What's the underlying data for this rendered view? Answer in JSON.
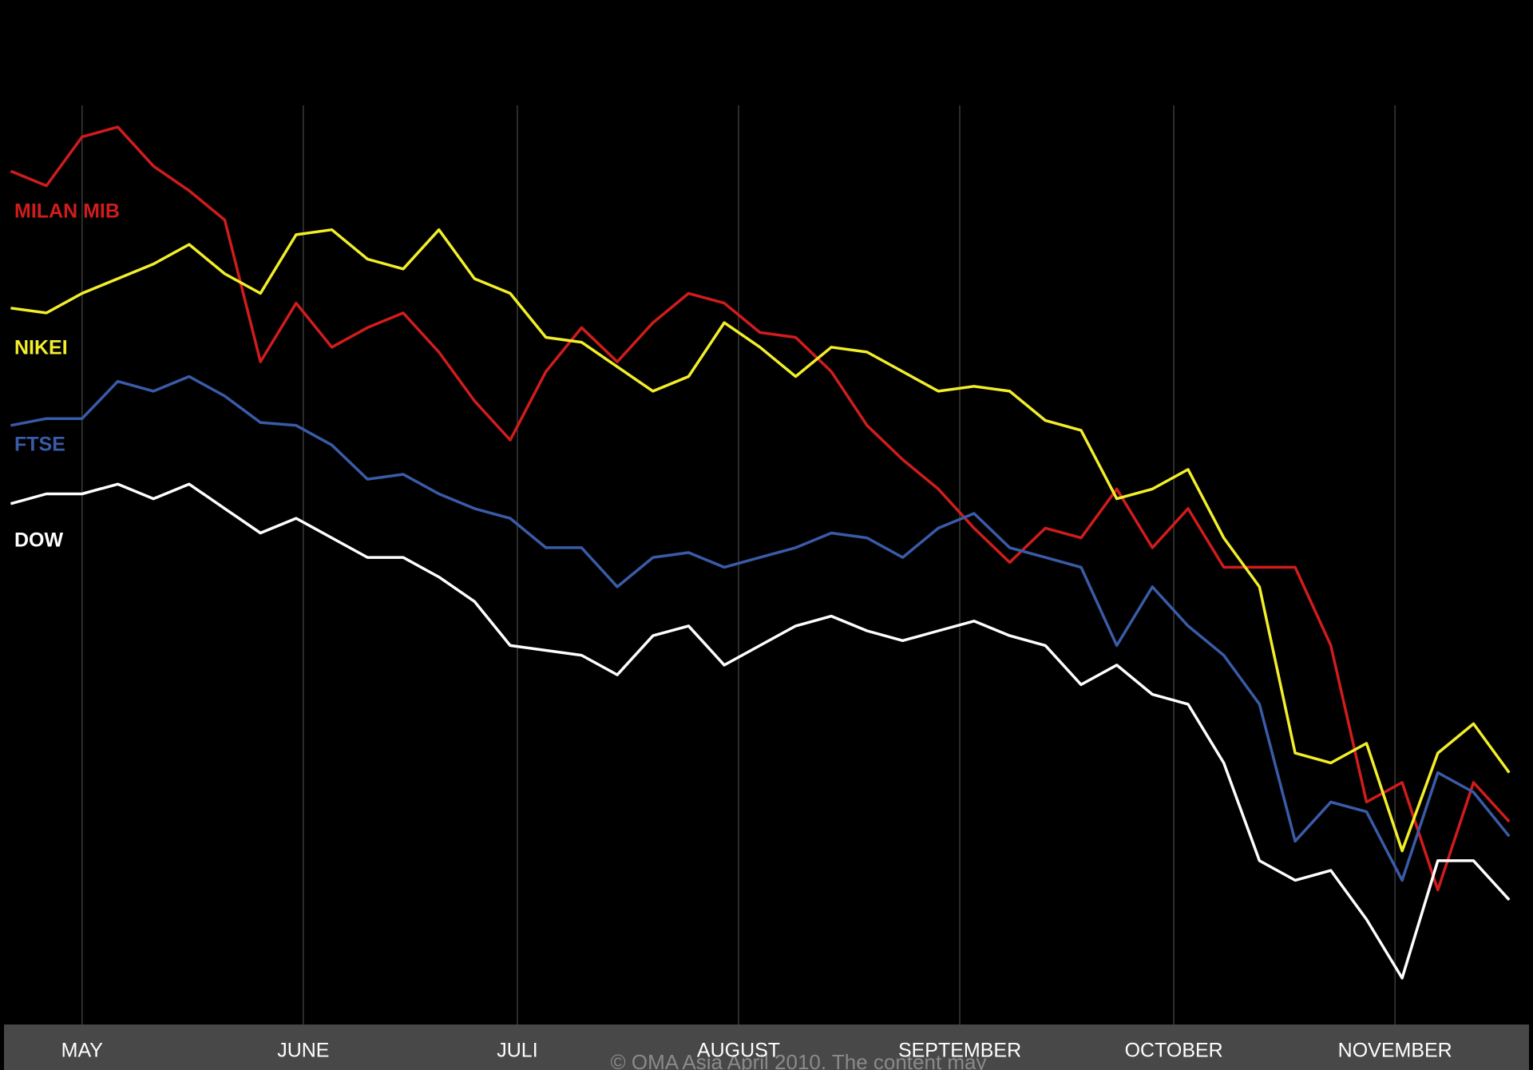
{
  "chart_data": {
    "type": "line",
    "x": [
      -10,
      -5,
      0,
      5,
      10,
      15,
      20,
      25,
      30,
      35,
      40,
      45,
      50,
      55,
      60,
      65,
      70,
      75,
      80,
      85,
      90,
      95,
      100,
      105,
      110,
      115,
      120,
      125,
      130,
      135,
      140,
      145,
      150,
      155,
      160,
      165,
      170,
      175,
      180,
      185,
      190,
      195,
      200
    ],
    "xlim": [
      -11,
      203
    ],
    "xticks": [
      {
        "value": 0,
        "label": "MAY"
      },
      {
        "value": 31,
        "label": "JUNE"
      },
      {
        "value": 61,
        "label": "JULI"
      },
      {
        "value": 92,
        "label": "AUGUST"
      },
      {
        "value": 123,
        "label": "SEPTEMBER"
      },
      {
        "value": 153,
        "label": "OCTOBER"
      },
      {
        "value": 184,
        "label": "NOVEMBER"
      }
    ],
    "ylim": [
      0,
      100
    ],
    "grid": true,
    "series": [
      {
        "name": "MILAN MIB",
        "color": "#d01c1c",
        "values": [
          87,
          85.5,
          90.5,
          91.5,
          87.5,
          85,
          82,
          67.5,
          73.5,
          69,
          71,
          72.5,
          68.5,
          63.5,
          59.5,
          66.5,
          71,
          67.5,
          71.5,
          74.5,
          73.5,
          70.5,
          70,
          66.5,
          61,
          57.5,
          54.5,
          50.5,
          47,
          50.5,
          49.5,
          54.5,
          48.5,
          52.5,
          46.5,
          46.5,
          46.5,
          38.5,
          22.5,
          24.5,
          13.5,
          24.5,
          20.5
        ]
      },
      {
        "name": "NIKEI",
        "color": "#f2ee2a",
        "values": [
          73,
          72.5,
          74.5,
          76,
          77.5,
          79.5,
          76.5,
          74.5,
          80.5,
          81,
          78,
          77,
          81,
          76,
          74.5,
          70,
          69.5,
          67,
          64.5,
          66,
          71.5,
          69,
          66,
          69,
          68.5,
          66.5,
          64.5,
          65,
          64.5,
          61.5,
          60.5,
          53.5,
          54.5,
          56.5,
          49.5,
          44.5,
          27.5,
          26.5,
          28.5,
          17.5,
          27.5,
          30.5,
          25.5
        ]
      },
      {
        "name": "FTSE",
        "color": "#3a5ba8",
        "values": [
          61,
          61.7,
          61.7,
          65.5,
          64.5,
          66,
          64,
          61.3,
          61,
          59,
          55.5,
          56,
          54,
          52.5,
          51.5,
          48.5,
          48.5,
          44.5,
          47.5,
          48,
          46.5,
          47.5,
          48.5,
          50,
          49.5,
          47.5,
          50.5,
          52,
          48.5,
          47.5,
          46.5,
          38.5,
          44.5,
          40.5,
          37.5,
          32.5,
          18.5,
          22.5,
          21.5,
          14.5,
          25.5,
          23.5,
          19
        ]
      },
      {
        "name": "DOW",
        "color": "#ffffff",
        "values": [
          53,
          54,
          54,
          55,
          53.5,
          55,
          52.5,
          50,
          51.5,
          49.5,
          47.5,
          47.5,
          45.5,
          43,
          38.5,
          38,
          37.5,
          35.5,
          39.5,
          40.5,
          36.5,
          38.5,
          40.5,
          41.5,
          40,
          39,
          40,
          41,
          39.5,
          38.5,
          34.5,
          36.5,
          33.5,
          32.5,
          26.5,
          16.5,
          14.5,
          15.5,
          10.5,
          4.5,
          16.5,
          16.5,
          12.5
        ]
      }
    ],
    "footnote": "© OMA Asia April 2010. The content may"
  }
}
